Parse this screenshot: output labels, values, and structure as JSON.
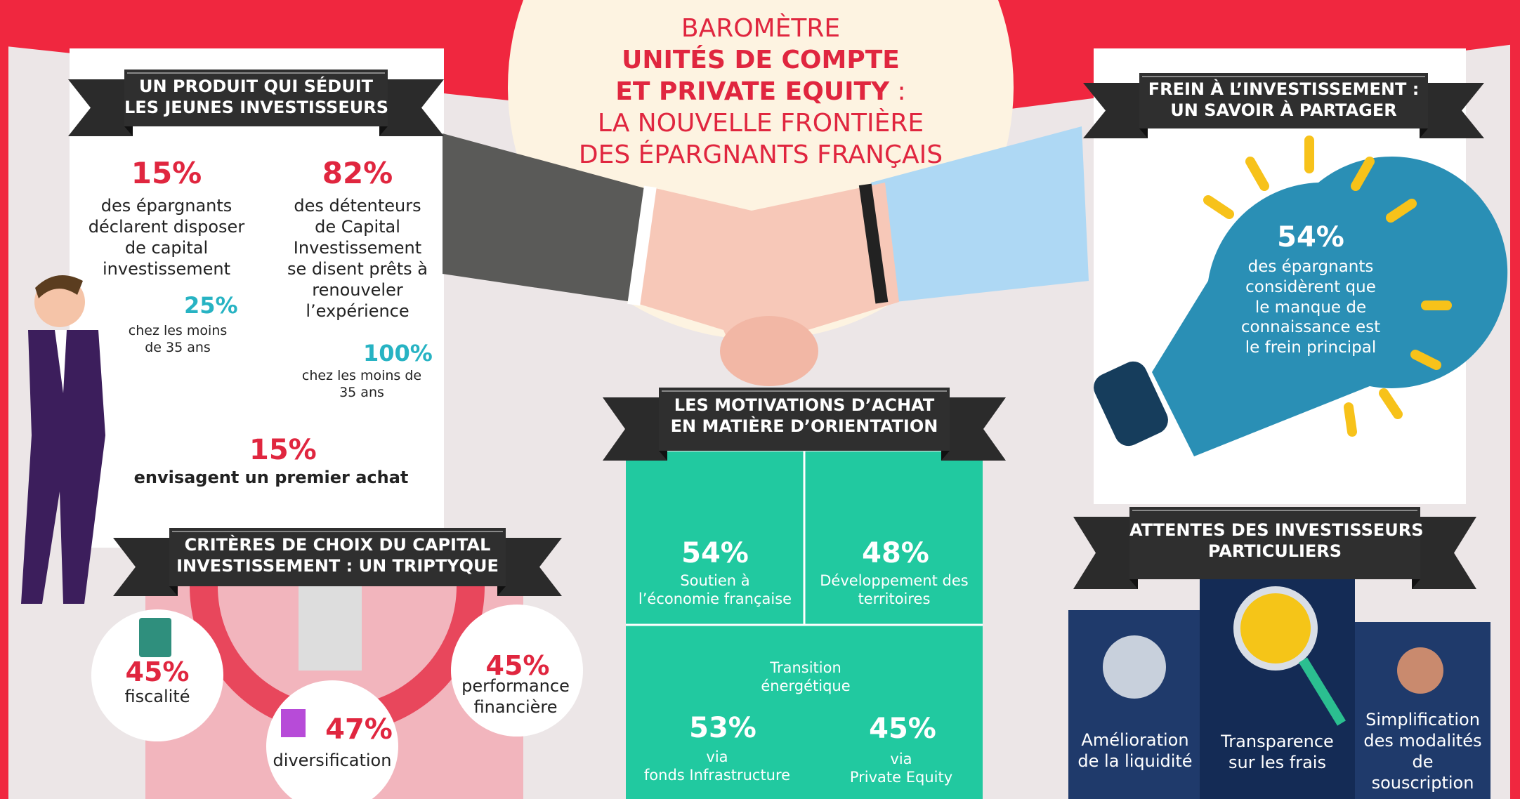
{
  "header": {
    "kicker": "BAROMÈTRE",
    "title": [
      "UNITÉS DE COMPTE",
      "ET PRIVATE EQUITY"
    ],
    "title_colon": ":",
    "subtitle": [
      "LA NOUVELLE FRONTIÈRE",
      "DES ÉPARGNANTS FRANÇAIS"
    ]
  },
  "young_investors": {
    "title": [
      "UN PRODUIT QUI SÉDUIT",
      "LES JEUNES INVESTISSEURS"
    ],
    "stats": [
      {
        "value": "15%",
        "text": [
          "des épargnants",
          "déclarent disposer",
          "de capital",
          "investissement"
        ],
        "sub_value": "25%",
        "sub_text": [
          "chez les moins",
          "de 35 ans"
        ]
      },
      {
        "value": "82%",
        "text": [
          "des détenteurs",
          "de Capital",
          "Investissement",
          "se disent prêts à",
          "renouveler",
          "l’expérience"
        ],
        "sub_value": "100%",
        "sub_text": [
          "chez les moins de",
          "35 ans"
        ]
      }
    ],
    "first_purchase": {
      "value": "15%",
      "text": "envisagent un premier achat"
    }
  },
  "choice_criteria": {
    "title": [
      "CRITÈRES DE CHOIX DU CAPITAL",
      "INVESTISSEMENT : UN TRIPTYQUE"
    ],
    "items": [
      {
        "value": "45%",
        "label": [
          "fiscalité"
        ]
      },
      {
        "value": "45%",
        "label": [
          "performance",
          "financière"
        ]
      },
      {
        "value": "47%",
        "label": [
          "diversification"
        ]
      }
    ]
  },
  "motivations": {
    "title": [
      "LES MOTIVATIONS D’ACHAT",
      "EN MATIÈRE D’ORIENTATION"
    ],
    "items": [
      {
        "value": "54%",
        "label": [
          "Soutien à",
          "l’économie française"
        ]
      },
      {
        "value": "48%",
        "label": [
          "Développement des",
          "territoires"
        ]
      }
    ],
    "energy_transition": {
      "label": [
        "Transition",
        "énergétique"
      ],
      "items": [
        {
          "value": "53%",
          "label": [
            "via",
            "fonds Infrastructure"
          ]
        },
        {
          "value": "45%",
          "label": [
            "via",
            "Private Equity"
          ]
        }
      ]
    }
  },
  "barrier": {
    "title": [
      "FREIN À L’INVESTISSEMENT :",
      "UN SAVOIR À PARTAGER"
    ],
    "value": "54%",
    "text": [
      "des épargnants",
      "considèrent que",
      "le manque de",
      "connaissance est",
      "le frein principal"
    ]
  },
  "expectations": {
    "title": [
      "ATTENTES DES INVESTISSEURS",
      "PARTICULIERS"
    ],
    "items": [
      [
        "Amélioration",
        "de la liquidité"
      ],
      [
        "Transparence",
        "sur les frais"
      ],
      [
        "Simplification",
        "des modalités",
        "de",
        "souscription"
      ]
    ]
  }
}
